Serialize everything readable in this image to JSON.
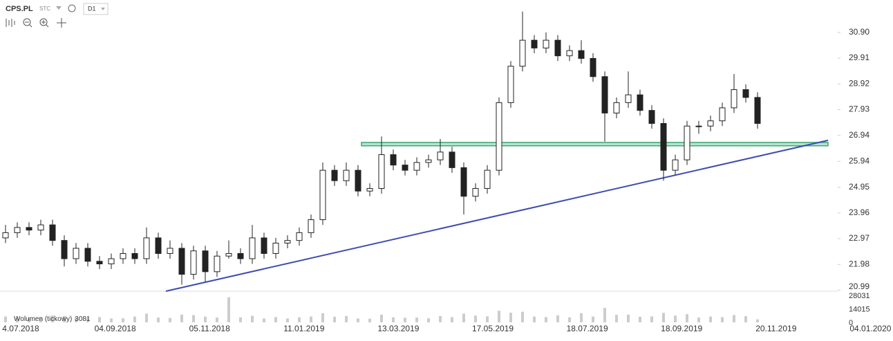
{
  "chart_data": {
    "type": "candlestick",
    "symbol": "CPS.PL",
    "source": "STC",
    "interval": "D1",
    "ylim": [
      20.95,
      31.88
    ],
    "yticks": [
      {
        "value": 30.9,
        "label": "30.90"
      },
      29.91,
      28.92,
      27.93,
      26.94,
      25.94,
      24.95,
      23.96,
      22.97,
      21.98,
      20.99
    ],
    "xticks": [
      "4.07.2018",
      "04.09.2018",
      "05.11.2018",
      "11.01.2019",
      "13.03.2019",
      "17.05.2019",
      "18.07.2019",
      "18.09.2019",
      "20.11.2019",
      "04.01.2020"
    ],
    "candles": [
      [
        23.0,
        23.5,
        22.8,
        23.2
      ],
      [
        23.2,
        23.6,
        23.0,
        23.4
      ],
      [
        23.4,
        23.6,
        23.1,
        23.3
      ],
      [
        23.3,
        23.7,
        23.1,
        23.5
      ],
      [
        23.5,
        23.7,
        22.7,
        22.9
      ],
      [
        22.9,
        23.1,
        21.9,
        22.2
      ],
      [
        22.2,
        22.8,
        22.0,
        22.6
      ],
      [
        22.6,
        22.8,
        21.9,
        22.1
      ],
      [
        22.1,
        22.3,
        21.8,
        22.0
      ],
      [
        22.0,
        22.4,
        21.8,
        22.2
      ],
      [
        22.2,
        22.6,
        22.0,
        22.4
      ],
      [
        22.4,
        22.6,
        22.0,
        22.2
      ],
      [
        22.2,
        23.4,
        22.0,
        23.0
      ],
      [
        23.0,
        23.2,
        22.2,
        22.4
      ],
      [
        22.4,
        22.9,
        22.2,
        22.6
      ],
      [
        22.6,
        22.8,
        21.2,
        21.6
      ],
      [
        21.6,
        22.7,
        21.4,
        22.5
      ],
      [
        22.5,
        22.7,
        21.3,
        21.7
      ],
      [
        21.7,
        22.5,
        21.5,
        22.3
      ],
      [
        22.3,
        22.9,
        22.2,
        22.4
      ],
      [
        22.4,
        22.6,
        22.0,
        22.2
      ],
      [
        22.2,
        23.5,
        22.0,
        23.0
      ],
      [
        23.0,
        23.2,
        22.2,
        22.4
      ],
      [
        22.4,
        23.0,
        22.2,
        22.8
      ],
      [
        22.8,
        23.1,
        22.6,
        22.9
      ],
      [
        22.9,
        23.4,
        22.7,
        23.2
      ],
      [
        23.2,
        23.9,
        23.0,
        23.7
      ],
      [
        23.7,
        25.9,
        23.5,
        25.6
      ],
      [
        25.6,
        25.8,
        25.0,
        25.2
      ],
      [
        25.2,
        25.9,
        25.0,
        25.6
      ],
      [
        25.6,
        25.8,
        24.6,
        24.8
      ],
      [
        24.8,
        25.1,
        24.6,
        24.9
      ],
      [
        24.9,
        26.9,
        24.7,
        26.2
      ],
      [
        26.2,
        26.4,
        25.6,
        25.8
      ],
      [
        25.8,
        26.0,
        25.4,
        25.6
      ],
      [
        25.6,
        26.1,
        25.4,
        25.9
      ],
      [
        25.9,
        26.2,
        25.7,
        26.0
      ],
      [
        26.0,
        26.8,
        25.8,
        26.3
      ],
      [
        26.3,
        26.5,
        25.5,
        25.7
      ],
      [
        25.7,
        25.9,
        23.9,
        24.6
      ],
      [
        24.6,
        25.1,
        24.4,
        24.9
      ],
      [
        24.9,
        25.8,
        24.7,
        25.6
      ],
      [
        25.6,
        28.4,
        25.4,
        28.2
      ],
      [
        28.2,
        29.8,
        28.0,
        29.6
      ],
      [
        29.6,
        31.7,
        29.4,
        30.6
      ],
      [
        30.6,
        30.8,
        30.1,
        30.3
      ],
      [
        30.3,
        30.9,
        30.1,
        30.6
      ],
      [
        30.6,
        30.8,
        29.8,
        30.0
      ],
      [
        30.0,
        30.4,
        29.8,
        30.2
      ],
      [
        30.2,
        30.6,
        29.7,
        29.9
      ],
      [
        29.9,
        30.1,
        29.0,
        29.2
      ],
      [
        29.2,
        29.4,
        26.7,
        27.8
      ],
      [
        27.8,
        28.4,
        27.6,
        28.2
      ],
      [
        28.2,
        29.4,
        28.0,
        28.5
      ],
      [
        28.5,
        28.7,
        27.7,
        27.9
      ],
      [
        27.9,
        28.1,
        27.2,
        27.4
      ],
      [
        27.4,
        27.6,
        25.2,
        25.6
      ],
      [
        25.6,
        26.2,
        25.4,
        26.0
      ],
      [
        26.0,
        27.5,
        25.8,
        27.3
      ],
      [
        27.3,
        27.5,
        27.0,
        27.3
      ],
      [
        27.3,
        27.7,
        27.1,
        27.5
      ],
      [
        27.5,
        28.2,
        27.3,
        28.0
      ],
      [
        28.0,
        29.3,
        27.8,
        28.7
      ],
      [
        28.7,
        28.9,
        28.2,
        28.4
      ],
      [
        28.4,
        28.6,
        27.2,
        27.4
      ]
    ],
    "volume": {
      "label": "Wolumen (tickowy)",
      "vlim": [
        0,
        28031
      ],
      "vticks": [
        28031,
        14015,
        0
      ],
      "values": [
        6000,
        5000,
        4500,
        5200,
        7000,
        6500,
        5000,
        4800,
        5500,
        4000,
        4200,
        6000,
        9000,
        5000,
        4500,
        8000,
        7500,
        6000,
        5000,
        26000,
        5200,
        6800,
        4000,
        5500,
        4000,
        5200,
        6000,
        9500,
        5800,
        6500,
        4000,
        3800,
        8000,
        5200,
        4800,
        5000,
        4200,
        6500,
        5400,
        9000,
        7000,
        6200,
        12000,
        10000,
        11000,
        6000,
        5500,
        7200,
        5200,
        9500,
        6000,
        15000,
        7800,
        8000,
        5800,
        6200,
        9800,
        7000,
        8500,
        5000,
        6000,
        5400,
        7600,
        6400,
        3081
      ]
    },
    "zone": {
      "from": 26.54,
      "to": 26.67,
      "color": "#3aa874"
    },
    "trendline": {
      "start": 20.95,
      "end": 26.75,
      "color": "#3f4cb0"
    }
  }
}
